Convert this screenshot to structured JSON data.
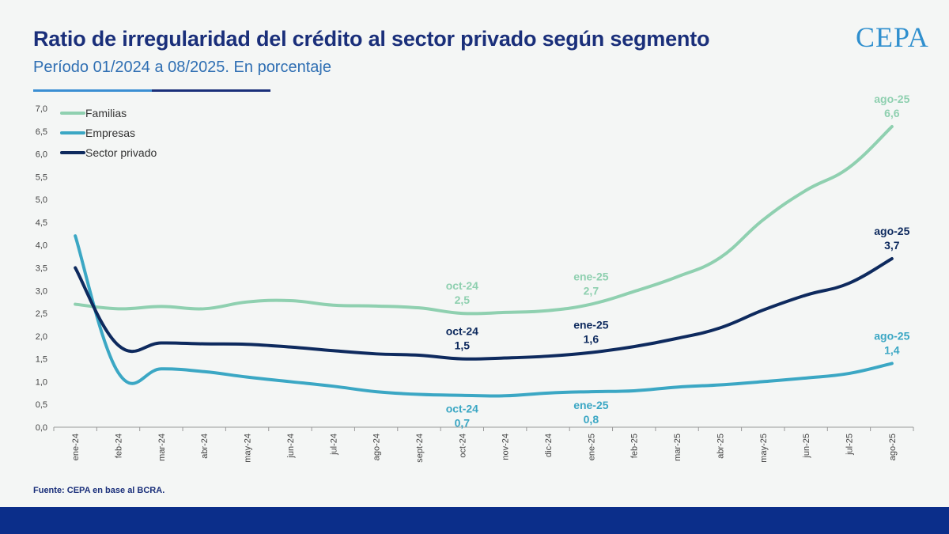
{
  "header": {
    "title": "Ratio de irregularidad del crédito al sector privado según segmento",
    "subtitle": "Período 01/2024 a 08/2025. En porcentaje",
    "logo": "CEPA"
  },
  "footer": {
    "source": "Fuente: CEPA en base al BCRA."
  },
  "colors": {
    "familias": "#8fd0b0",
    "empresas": "#3ba7c4",
    "sector_privado": "#0e2a5e",
    "footer_bar": "#0b2e8a"
  },
  "chart_data": {
    "type": "line",
    "title": "Ratio de irregularidad del crédito al sector privado según segmento",
    "xlabel": "",
    "ylabel": "",
    "ylim": [
      0,
      7
    ],
    "yticks": [
      "0,0",
      "0,5",
      "1,0",
      "1,5",
      "2,0",
      "2,5",
      "3,0",
      "3,5",
      "4,0",
      "4,5",
      "5,0",
      "5,5",
      "6,0",
      "6,5",
      "7,0"
    ],
    "categories": [
      "ene-24",
      "feb-24",
      "mar-24",
      "abr-24",
      "may-24",
      "jun-24",
      "jul-24",
      "ago-24",
      "sept-24",
      "oct-24",
      "nov-24",
      "dic-24",
      "ene-25",
      "feb-25",
      "mar-25",
      "abr-25",
      "may-25",
      "jun-25",
      "jul-25",
      "ago-25"
    ],
    "legend_position": "top-left",
    "series": [
      {
        "name": "Familias",
        "key": "familias",
        "values": [
          2.7,
          2.6,
          2.65,
          2.6,
          2.75,
          2.78,
          2.68,
          2.66,
          2.62,
          2.5,
          2.52,
          2.56,
          2.7,
          2.98,
          3.3,
          3.72,
          4.55,
          5.2,
          5.7,
          6.6
        ]
      },
      {
        "name": "Empresas",
        "key": "empresas",
        "values": [
          4.2,
          1.2,
          1.28,
          1.22,
          1.1,
          1.0,
          0.9,
          0.78,
          0.72,
          0.7,
          0.69,
          0.75,
          0.78,
          0.8,
          0.88,
          0.93,
          1.0,
          1.08,
          1.18,
          1.4
        ]
      },
      {
        "name": "Sector privado",
        "key": "sector_privado",
        "values": [
          3.5,
          1.8,
          1.85,
          1.83,
          1.82,
          1.76,
          1.68,
          1.61,
          1.58,
          1.5,
          1.52,
          1.56,
          1.64,
          1.77,
          1.95,
          2.18,
          2.57,
          2.9,
          3.16,
          3.7
        ]
      }
    ],
    "annotations": [
      {
        "series": "familias",
        "index": 9,
        "label": "oct-24",
        "value": "2,5",
        "position": "above"
      },
      {
        "series": "familias",
        "index": 12,
        "label": "ene-25",
        "value": "2,7",
        "position": "above"
      },
      {
        "series": "familias",
        "index": 19,
        "label": "ago-25",
        "value": "6,6",
        "position": "above"
      },
      {
        "series": "sector_privado",
        "index": 9,
        "label": "oct-24",
        "value": "1,5",
        "position": "above"
      },
      {
        "series": "sector_privado",
        "index": 12,
        "label": "ene-25",
        "value": "1,6",
        "position": "above"
      },
      {
        "series": "sector_privado",
        "index": 19,
        "label": "ago-25",
        "value": "3,7",
        "position": "above"
      },
      {
        "series": "empresas",
        "index": 9,
        "label": "oct-24",
        "value": "0,7",
        "position": "below"
      },
      {
        "series": "empresas",
        "index": 12,
        "label": "ene-25",
        "value": "0,8",
        "position": "below"
      },
      {
        "series": "empresas",
        "index": 19,
        "label": "ago-25",
        "value": "1,4",
        "position": "above"
      }
    ]
  }
}
